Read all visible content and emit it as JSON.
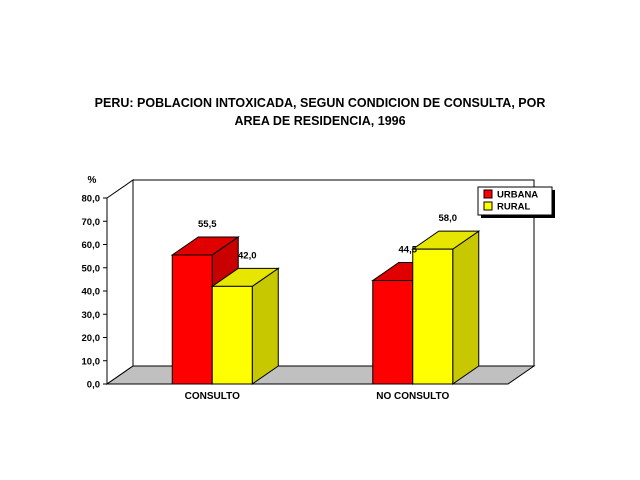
{
  "chart_data": {
    "type": "bar",
    "title_lines": [
      "PERU: POBLACION INTOXICADA, SEGUN CONDICION DE CONSULTA, POR",
      "AREA DE RESIDENCIA, 1996"
    ],
    "ylabel": "%",
    "ylim": [
      0,
      80
    ],
    "yticks": [
      "0,0",
      "10,0",
      "20,0",
      "30,0",
      "40,0",
      "50,0",
      "60,0",
      "70,0",
      "80,0"
    ],
    "categories": [
      "CONSULTO",
      "NO CONSULTO"
    ],
    "series": [
      {
        "name": "URBANA",
        "values": [
          55.5,
          44.5
        ],
        "labels": [
          "55,5",
          "44,5"
        ],
        "color": "#ff0000",
        "side_color": "#c80000",
        "top_color": "#e00000"
      },
      {
        "name": "RURAL",
        "values": [
          42.0,
          58.0
        ],
        "labels": [
          "42,0",
          "58,0"
        ],
        "color": "#ffff00",
        "side_color": "#c8c800",
        "top_color": "#e6e600"
      }
    ],
    "legend_position": "top-right",
    "grid": false,
    "style": "3d-column"
  }
}
